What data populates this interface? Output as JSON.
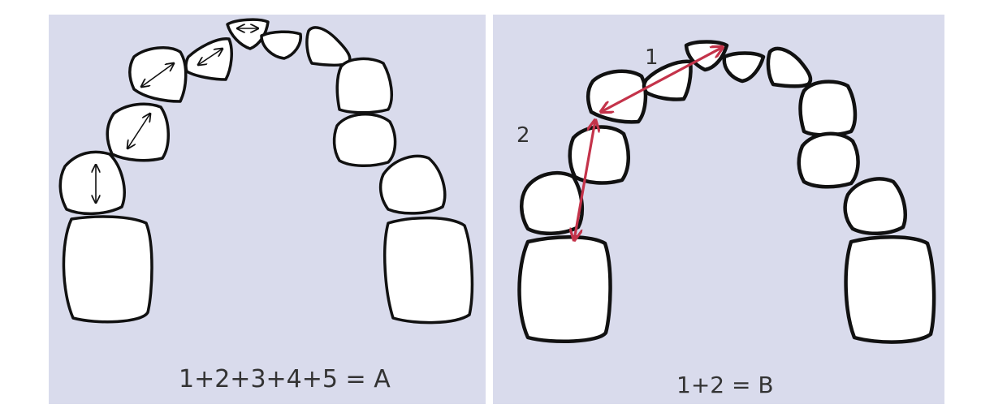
{
  "panel_a": {
    "formula": "1+2+3+4+5 = A"
  },
  "panel_b": {
    "formula": "1+2 = B",
    "segment_labels": [
      "1",
      "2"
    ]
  },
  "colors": {
    "background": "#d9dbec",
    "tooth_fill": "#ffffff",
    "outline": "#111111",
    "measure_line": "#c4334a"
  }
}
